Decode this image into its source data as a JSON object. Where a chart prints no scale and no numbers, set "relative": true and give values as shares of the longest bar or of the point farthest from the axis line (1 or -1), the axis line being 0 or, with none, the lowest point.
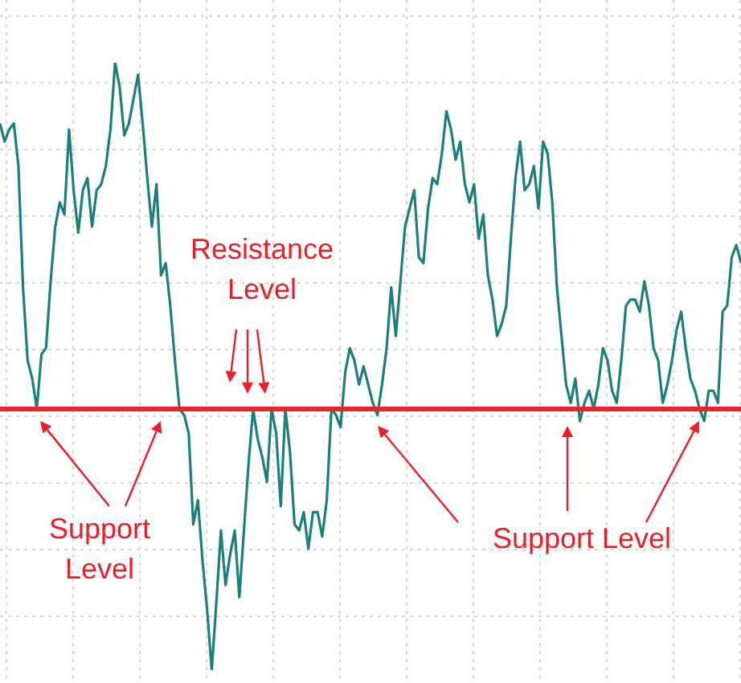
{
  "chart_data": {
    "type": "line",
    "relative": true,
    "grid": true,
    "legend": false,
    "marker": "none",
    "line_style": "solid",
    "categories": [
      null,
      null,
      null,
      null,
      null,
      null,
      null,
      null,
      null,
      null,
      null,
      null,
      null,
      null,
      null,
      null,
      null,
      null,
      null,
      null,
      null,
      null,
      null,
      null,
      null,
      null,
      null,
      null,
      null,
      null,
      null,
      null,
      null,
      null,
      null,
      null,
      null,
      null,
      null,
      null,
      null,
      null,
      null,
      null,
      null,
      null,
      null,
      null,
      null,
      null,
      null,
      null,
      null,
      null,
      null,
      null,
      null,
      null,
      null,
      null,
      null,
      null,
      null,
      null,
      null,
      null,
      null,
      null,
      null,
      null,
      null,
      null,
      null,
      null,
      null,
      null,
      null,
      null,
      null,
      null,
      null,
      null,
      null,
      null,
      null,
      null,
      null,
      null,
      null,
      null,
      null,
      null,
      null,
      null,
      null,
      null,
      null,
      null,
      null,
      null,
      null,
      null,
      null,
      null,
      null,
      null,
      null,
      null,
      null,
      null,
      null,
      null,
      null,
      null,
      null,
      null,
      null,
      null,
      null,
      null,
      null,
      null,
      null,
      null,
      null,
      null,
      null,
      null,
      null,
      null,
      null,
      null,
      null,
      null,
      null,
      null,
      null,
      null,
      null,
      null,
      null,
      null,
      null,
      null,
      null,
      null,
      null,
      null,
      null,
      null,
      null,
      null,
      null,
      null,
      null,
      null,
      null,
      null,
      null,
      null,
      null,
      null
    ],
    "series": [
      {
        "color": "#1b7f7c",
        "values": [
          0.9,
          0.87,
          0.89,
          0.9,
          0.83,
          0.63,
          0.51,
          0.48,
          0.43,
          0.52,
          0.53,
          0.64,
          0.73,
          0.77,
          0.75,
          0.89,
          0.79,
          0.72,
          0.79,
          0.81,
          0.73,
          0.79,
          0.8,
          0.83,
          0.89,
          1,
          0.96,
          0.88,
          0.9,
          0.94,
          0.98,
          0.9,
          0.81,
          0.73,
          0.8,
          0.65,
          0.67,
          0.6,
          0.51,
          0.43,
          0.42,
          0.39,
          0.24,
          0.28,
          0.18,
          0.1,
          0,
          0.11,
          0.23,
          0.14,
          0.19,
          0.23,
          0.12,
          0.23,
          0.34,
          0.43,
          0.38,
          0.35,
          0.31,
          0.43,
          0.39,
          0.27,
          0.43,
          0.36,
          0.24,
          0.23,
          0.26,
          0.2,
          0.26,
          0.26,
          0.22,
          0.28,
          0.43,
          0.42,
          0.4,
          0.49,
          0.53,
          0.51,
          0.47,
          0.5,
          0.47,
          0.44,
          0.42,
          0.47,
          0.53,
          0.63,
          0.55,
          0.64,
          0.73,
          0.76,
          0.79,
          0.68,
          0.67,
          0.76,
          0.81,
          0.8,
          0.85,
          0.92,
          0.89,
          0.84,
          0.87,
          0.8,
          0.77,
          0.8,
          0.71,
          0.75,
          0.65,
          0.61,
          0.55,
          0.57,
          0.6,
          0.71,
          0.81,
          0.87,
          0.79,
          0.8,
          0.83,
          0.76,
          0.87,
          0.85,
          0.77,
          0.63,
          0.55,
          0.47,
          0.44,
          0.48,
          0.41,
          0.44,
          0.46,
          0.43,
          0.47,
          0.53,
          0.51,
          0.46,
          0.44,
          0.51,
          0.6,
          0.61,
          0.61,
          0.59,
          0.64,
          0.6,
          0.53,
          0.51,
          0.44,
          0.47,
          0.51,
          0.56,
          0.59,
          0.53,
          0.48,
          0.46,
          0.43,
          0.41,
          0.46,
          0.46,
          0.44,
          0.59,
          0.6,
          0.68,
          0.7,
          0.67
        ]
      }
    ],
    "ref_lines": [
      {
        "axis": "y",
        "value": 0.43,
        "color": "#e8262a"
      }
    ],
    "annotations": [
      "Resistance Level",
      "Support Level",
      "Support Level"
    ]
  }
}
